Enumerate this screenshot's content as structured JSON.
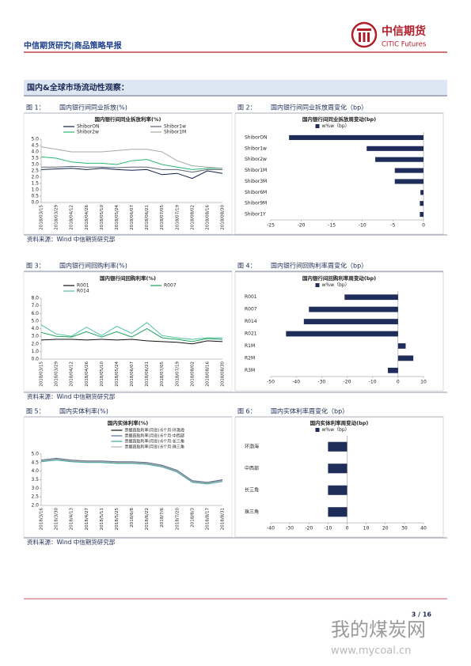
{
  "header": {
    "title": "中信期货研究|商品策略早报",
    "logo": "中信期货",
    "logo_en": "CITIC Futures"
  },
  "section": "国内&全球市场流动性观察：",
  "figures": [
    {
      "label": "图 1：",
      "caption": "国内银行间同业拆放(%)"
    },
    {
      "label": "图 2：",
      "caption": "国内银行间同业拆放周变化（bp）"
    },
    {
      "label": "图 3：",
      "caption": "国内银行间回购利率(%)"
    },
    {
      "label": "图 4：",
      "caption": "国内银行间回购利率周变化（bp）"
    },
    {
      "label": "图 5：",
      "caption": "国内实体利率(%)"
    },
    {
      "label": "图 6：",
      "caption": "国内实体利率周变化（bp）"
    }
  ],
  "sources": [
    "资料来源：Wind  中信期货研究部",
    "资料来源：Wind  中信期货研究部",
    "资料来源：Wind  中信期货研究部"
  ],
  "page_number": "3 / 16",
  "watermark": {
    "name": "我的煤炭网",
    "url": "www.mycoal.cn"
  },
  "chart_data": [
    {
      "type": "line",
      "title": "国内银行间同业拆放利率(%)",
      "categories": [
        "2018/03/15",
        "2018/03/29",
        "2018/04/12",
        "2018/04/26",
        "2018/05/10",
        "2018/05/24",
        "2018/06/07",
        "2018/06/21",
        "2018/07/05",
        "2018/07/19",
        "2018/08/02",
        "2018/08/16",
        "2018/08/30"
      ],
      "series": [
        {
          "name": "ShiborON",
          "color": "#0d1f4a",
          "values": [
            2.6,
            2.65,
            2.7,
            2.6,
            2.7,
            2.6,
            2.55,
            2.6,
            2.2,
            2.3,
            1.9,
            2.5,
            2.3
          ]
        },
        {
          "name": "Shibor1w",
          "color": "#5a6478",
          "values": [
            2.8,
            2.8,
            2.85,
            2.8,
            2.8,
            2.75,
            2.8,
            2.8,
            2.6,
            2.6,
            2.4,
            2.6,
            2.6
          ]
        },
        {
          "name": "Shibor2w",
          "color": "#2bb673",
          "values": [
            3.6,
            3.5,
            3.2,
            3.1,
            3.1,
            3.0,
            3.3,
            3.4,
            3.0,
            2.8,
            2.6,
            2.7,
            2.7
          ]
        },
        {
          "name": "Shibor1M",
          "color": "#a8a8a8",
          "values": [
            4.4,
            4.2,
            4.0,
            4.0,
            4.0,
            4.1,
            4.2,
            4.2,
            4.0,
            3.3,
            2.9,
            2.8,
            2.7
          ]
        }
      ],
      "ylim": [
        0,
        5
      ],
      "yticks": [
        {
          "value": 0,
          "label": "0.0"
        },
        {
          "value": 0.5,
          "label": "0.5"
        },
        {
          "value": 1,
          "label": "1.0"
        },
        {
          "value": 1.5,
          "label": "1.5"
        },
        {
          "value": 2,
          "label": "2.0"
        },
        {
          "value": 2.5,
          "label": "2.5"
        },
        {
          "value": 3,
          "label": "3.0"
        },
        {
          "value": 3.5,
          "label": "3.5"
        },
        {
          "value": 4,
          "label": "4.0"
        },
        {
          "value": 4.5,
          "label": "4.5"
        },
        {
          "value": 5,
          "label": "5.0"
        }
      ]
    },
    {
      "type": "hbar",
      "title": "国内银行间同业拆放周变动(bp)",
      "categories": [
        "ShiborON",
        "Shibor1w",
        "Shibor2w",
        "Shibor1M",
        "Shibor3M",
        "Shibor6M",
        "Shibor9M",
        "Shibor1Y"
      ],
      "series": [
        {
          "name": "w%w（bp）",
          "color": "#1f2d5a",
          "values": [
            -22,
            -9.3,
            -7.9,
            -4.7,
            -4.7,
            -0.5,
            -0.6,
            -0.6
          ]
        }
      ],
      "xlim": [
        -25,
        0
      ],
      "xticks": [
        -25,
        -20,
        -15,
        -10,
        -5,
        0
      ]
    },
    {
      "type": "line",
      "title": "国内银行间回购利率(%)",
      "categories": [
        "2018/03/15",
        "2018/03/29",
        "2018/04/12",
        "2018/04/26",
        "2018/05/10",
        "2018/05/24",
        "2018/06/07",
        "2018/06/21",
        "2018/07/05",
        "2018/07/19",
        "2018/08/02",
        "2018/08/16",
        "2018/08/30"
      ],
      "series": [
        {
          "name": "R001",
          "color": "#111111",
          "values": [
            2.5,
            2.6,
            2.6,
            2.5,
            2.6,
            2.5,
            2.6,
            2.4,
            2.3,
            2.2,
            2.0,
            2.4,
            2.3
          ]
        },
        {
          "name": "R007",
          "color": "#1fa35a",
          "values": [
            3.5,
            3.0,
            2.9,
            3.6,
            2.9,
            3.6,
            2.9,
            4.0,
            2.8,
            2.6,
            2.3,
            2.7,
            2.6
          ]
        },
        {
          "name": "R014",
          "color": "#4fc1a3",
          "values": [
            4.5,
            3.3,
            3.0,
            4.2,
            3.1,
            4.3,
            3.4,
            4.8,
            3.1,
            2.8,
            2.6,
            2.8,
            2.8
          ]
        }
      ],
      "ylim": [
        0,
        8
      ],
      "yticks": [
        {
          "value": 0,
          "label": "0.0"
        },
        {
          "value": 1,
          "label": "1.0"
        },
        {
          "value": 2,
          "label": "2.0"
        },
        {
          "value": 3,
          "label": "3.0"
        },
        {
          "value": 4,
          "label": "4.0"
        },
        {
          "value": 5,
          "label": "5.0"
        },
        {
          "value": 6,
          "label": "6.0"
        },
        {
          "value": 7,
          "label": "7.0"
        },
        {
          "value": 8,
          "label": "8.0"
        }
      ]
    },
    {
      "type": "hbar",
      "title": "国内银行间回购利率周变动(bp)",
      "categories": [
        "R001",
        "R007",
        "R014",
        "R021",
        "R1M",
        "R2M",
        "R3M"
      ],
      "series": [
        {
          "name": "w%w（bp）",
          "color": "#1f2d5a",
          "values": [
            -21,
            -35,
            -37,
            -44,
            3,
            6,
            -4
          ]
        }
      ],
      "xlim": [
        -50,
        10
      ],
      "xticks": [
        -50,
        -40,
        -30,
        -20,
        -10,
        0,
        10
      ]
    },
    {
      "type": "line",
      "title": "国内实体利率(%)",
      "categories": [
        "2018/3/16",
        "2018/3/30",
        "2018/4/13",
        "2018/4/27",
        "2018/5/11",
        "2018/5/25",
        "2018/6/8",
        "2018/6/22",
        "2018/7/6",
        "2018/7/20",
        "2018/8/3",
        "2018/8/17",
        "2018/8/31"
      ],
      "series": [
        {
          "name": "票据直贴利率(月息):6个月:环渤海",
          "color": "#111111",
          "values": [
            4.6,
            4.7,
            4.6,
            4.55,
            4.55,
            4.5,
            4.5,
            4.45,
            4.3,
            4.0,
            3.4,
            3.3,
            3.5
          ]
        },
        {
          "name": "票据直贴利率(月息):6个月:中西部",
          "color": "#5b6f8f",
          "values": [
            4.65,
            4.75,
            4.65,
            4.6,
            4.6,
            4.55,
            4.55,
            4.5,
            4.35,
            4.05,
            3.45,
            3.35,
            3.5
          ]
        },
        {
          "name": "票据直贴利率(月息):6个月:长三角",
          "color": "#3aa6a0",
          "values": [
            4.55,
            4.65,
            4.55,
            4.5,
            4.5,
            4.45,
            4.45,
            4.4,
            4.25,
            3.95,
            3.35,
            3.25,
            3.4
          ]
        },
        {
          "name": "票据直贴利率(月息):6个月:珠三角",
          "color": "#b0b0b0",
          "values": [
            4.6,
            4.7,
            4.6,
            4.55,
            4.55,
            4.5,
            4.5,
            4.45,
            4.3,
            4.0,
            3.4,
            3.3,
            3.45
          ]
        }
      ],
      "ylim": [
        2,
        5
      ],
      "yticks": [
        {
          "value": 2,
          "label": "2.0"
        },
        {
          "value": 2.5,
          "label": "2.5"
        },
        {
          "value": 3,
          "label": "3.0"
        },
        {
          "value": 3.5,
          "label": "3.5"
        },
        {
          "value": 4,
          "label": "4.0"
        },
        {
          "value": 4.5,
          "label": "4.5"
        },
        {
          "value": 5,
          "label": "5.0"
        }
      ]
    },
    {
      "type": "hbar",
      "title": "国内实体利率周变动(bp)",
      "categories": [
        "环渤海",
        "中西部",
        "长三角",
        "珠三角"
      ],
      "series": [
        {
          "name": "w%w（bp）",
          "color": "#1f2d5a",
          "values": [
            -10,
            -10,
            -10,
            -10
          ]
        }
      ],
      "xlim": [
        -40,
        40
      ],
      "xticks": [
        -40,
        -30,
        -20,
        -10,
        0,
        10,
        20,
        30,
        40
      ]
    }
  ]
}
